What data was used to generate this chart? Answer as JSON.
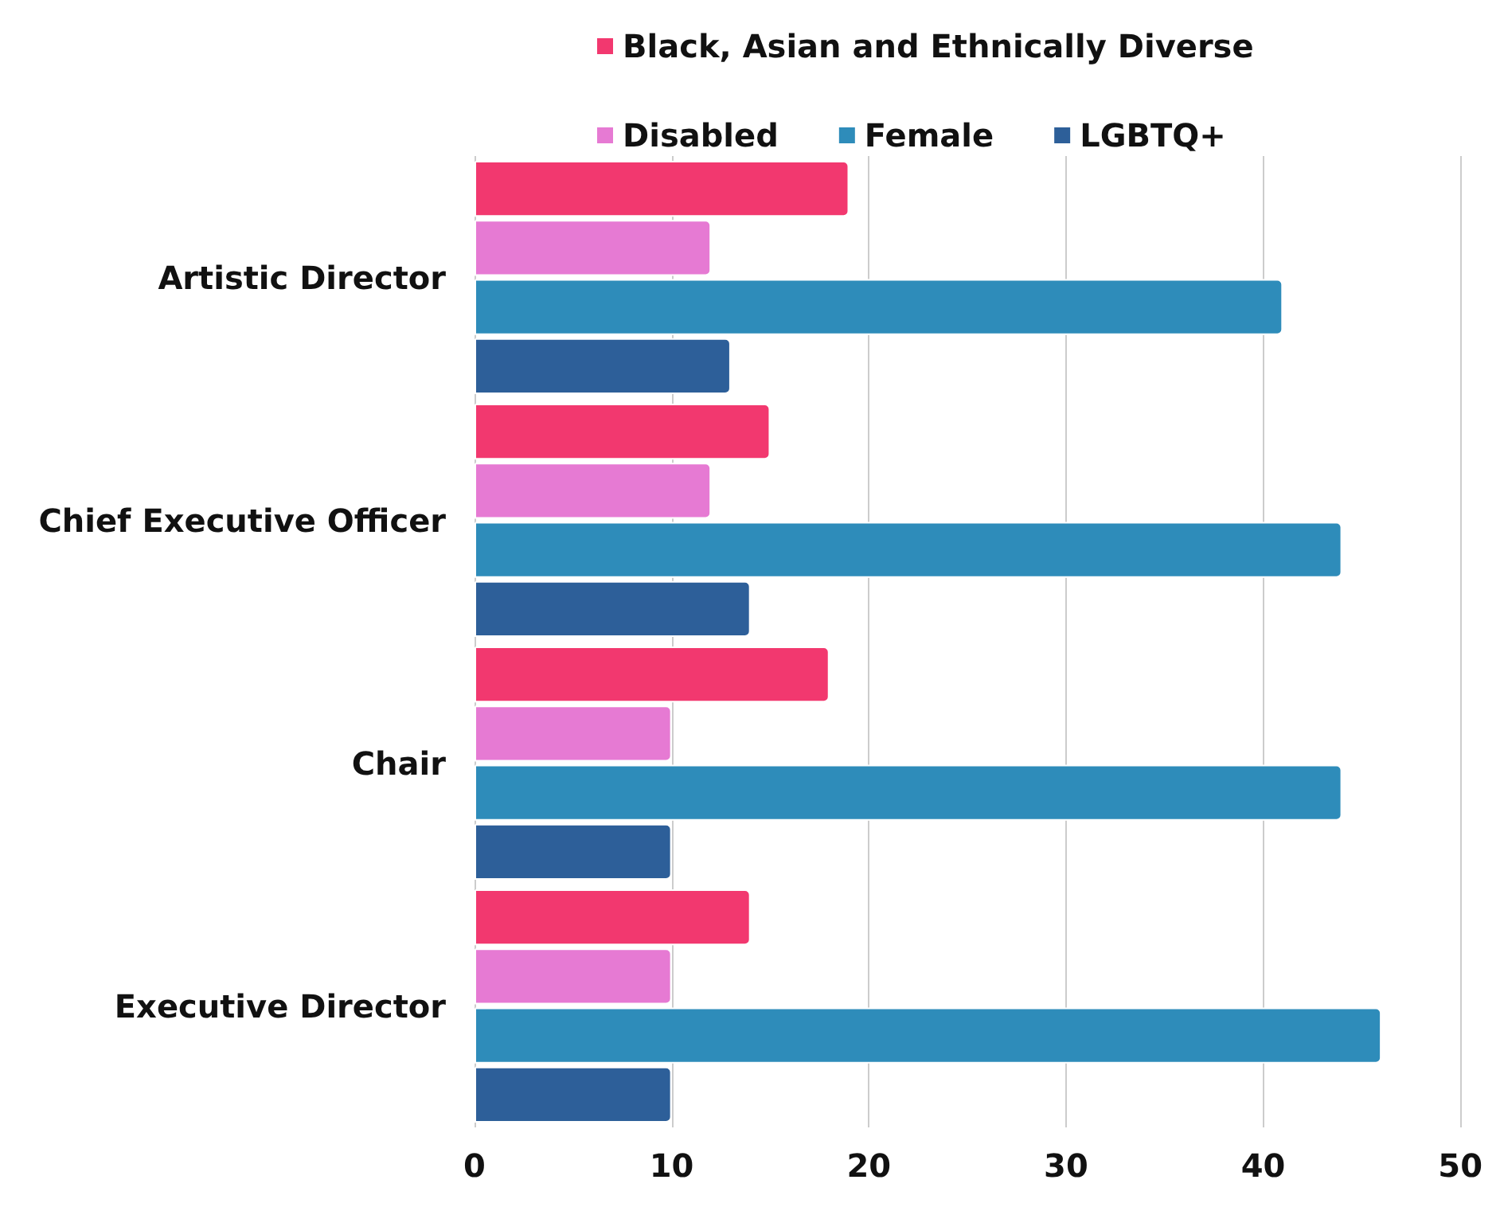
{
  "chart_data": {
    "type": "bar",
    "orientation": "horizontal",
    "categories": [
      "Artistic Director",
      "Chief Executive Officer",
      "Chair",
      "Executive Director"
    ],
    "series": [
      {
        "name": "Black, Asian and Ethnically Diverse",
        "color": "#f2386f",
        "values": [
          19,
          15,
          18,
          14
        ]
      },
      {
        "name": "Disabled",
        "color": "#e67ad3",
        "values": [
          12,
          12,
          10,
          10
        ]
      },
      {
        "name": "Female",
        "color": "#2e8cba",
        "values": [
          41,
          44,
          44,
          46
        ]
      },
      {
        "name": "LGBTQ+",
        "color": "#2d5f99",
        "values": [
          13,
          14,
          10,
          10
        ]
      }
    ],
    "xlim": [
      0,
      50
    ],
    "xticks": [
      0,
      10,
      20,
      30,
      40,
      50
    ],
    "grid": "x",
    "legend": "top"
  }
}
